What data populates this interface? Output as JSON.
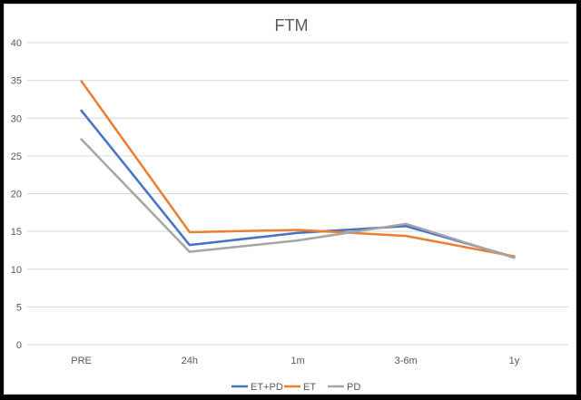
{
  "chart_data": {
    "type": "line",
    "title": "FTM",
    "xlabel": "",
    "ylabel": "",
    "categories": [
      "PRE",
      "24h",
      "1m",
      "3-6m",
      "1y"
    ],
    "ylim": [
      0,
      40
    ],
    "yticks": [
      0,
      5,
      10,
      15,
      20,
      25,
      30,
      35,
      40
    ],
    "grid": true,
    "legend_position": "bottom",
    "series": [
      {
        "name": "ET+PD",
        "color": "#4472c4",
        "values": [
          31.0,
          13.2,
          14.8,
          15.7,
          11.6
        ]
      },
      {
        "name": "ET",
        "color": "#ed7d31",
        "values": [
          34.9,
          14.9,
          15.2,
          14.4,
          11.7
        ]
      },
      {
        "name": "PD",
        "color": "#a5a5a5",
        "values": [
          27.2,
          12.3,
          13.8,
          16.0,
          11.5
        ]
      }
    ]
  }
}
